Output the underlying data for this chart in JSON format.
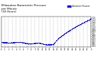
{
  "title": "Milwaukee Barometric Pressure\nper Minute\n(24 Hours)",
  "title_fontsize": 3.0,
  "dot_color": "#0000FF",
  "dot_size": 0.4,
  "background_color": "#FFFFFF",
  "grid_color": "#AAAAAA",
  "xlim": [
    0,
    1440
  ],
  "ylim": [
    28.95,
    30.55
  ],
  "legend_label": "Barometric Pressure",
  "legend_color": "#0000FF",
  "x_ticks_labels": [
    "0",
    "1",
    "2",
    "3",
    "4",
    "5",
    "6",
    "7",
    "8",
    "9",
    "10",
    "11",
    "12",
    "13",
    "14",
    "15",
    "16",
    "17",
    "18",
    "19",
    "20",
    "21",
    "22",
    "23",
    "0"
  ],
  "x_ticks_positions": [
    0,
    60,
    120,
    180,
    240,
    300,
    360,
    420,
    480,
    540,
    600,
    660,
    720,
    780,
    840,
    900,
    960,
    1020,
    1080,
    1140,
    1200,
    1260,
    1320,
    1380,
    1440
  ],
  "y_ticks": [
    29.0,
    29.1,
    29.2,
    29.3,
    29.4,
    29.5,
    29.6,
    29.7,
    29.8,
    29.9,
    30.0,
    30.1,
    30.2,
    30.3,
    30.4,
    30.5
  ],
  "figsize": [
    1.6,
    0.87
  ],
  "dpi": 100
}
